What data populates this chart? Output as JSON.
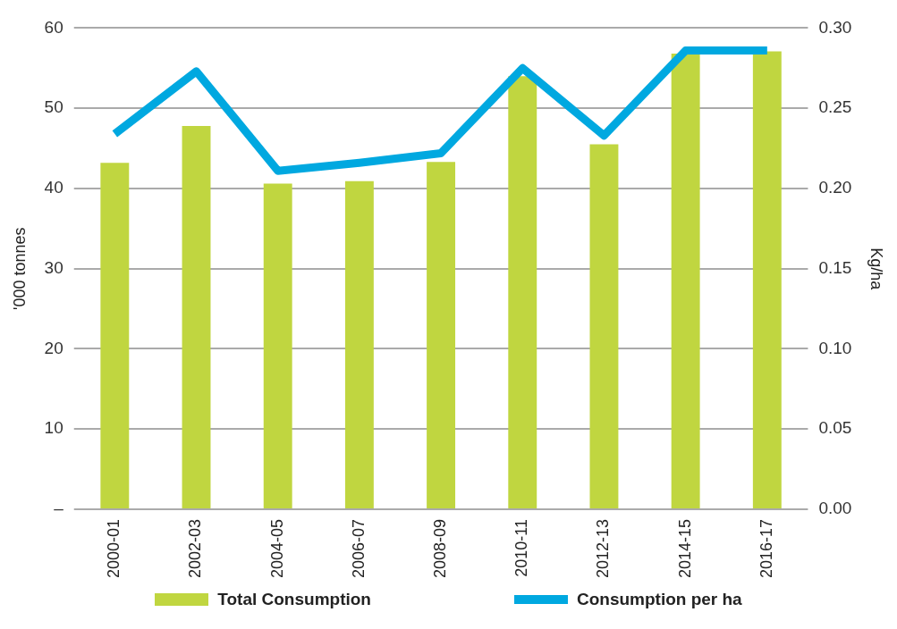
{
  "chart_data": {
    "type": "bar",
    "categories": [
      "2000-01",
      "2002-03",
      "2004-05",
      "2006-07",
      "2008-09",
      "2010-11",
      "2012-13",
      "2014-15",
      "2016-17"
    ],
    "series": [
      {
        "name": "Total Consumption",
        "color": "#c0d640",
        "values": [
          43.2,
          47.8,
          40.6,
          40.9,
          43.3,
          54,
          45.5,
          56.8,
          57.1
        ]
      },
      {
        "name": "Consumption per ha",
        "type": "line",
        "axis": "y2",
        "color": "#00a8e0",
        "values": [
          0.234,
          0.273,
          0.211,
          0.216,
          0.222,
          0.275,
          0.233,
          0.286,
          0.286
        ]
      }
    ],
    "ylabel": "'000 tonnes",
    "y2label": "Kg/ha",
    "ylim": [
      0,
      60
    ],
    "yticks": [
      {
        "value": 0,
        "label": "–"
      },
      10,
      20,
      30,
      40,
      50,
      60
    ],
    "y2lim": [
      0,
      0.3
    ],
    "y2ticks": [
      {
        "value": 0,
        "label": "0.00"
      },
      {
        "value": 0.05,
        "label": "0.05"
      },
      {
        "value": 0.1,
        "label": "0.10"
      },
      {
        "value": 0.15,
        "label": "0.15"
      },
      {
        "value": 0.2,
        "label": "0.20"
      },
      {
        "value": 0.25,
        "label": "0.25"
      },
      {
        "value": 0.3,
        "label": "0.30"
      }
    ],
    "grid": "y",
    "legend": "bottom",
    "marker": "none"
  }
}
